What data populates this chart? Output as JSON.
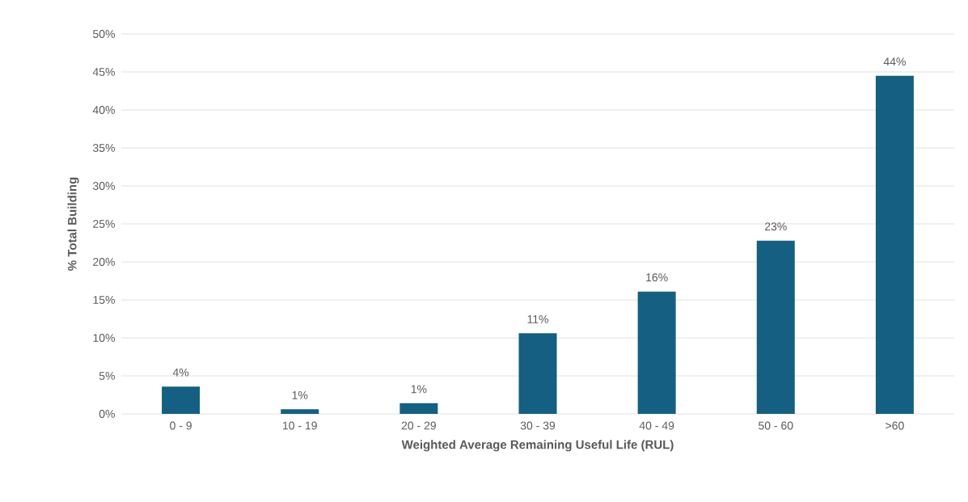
{
  "chart_data": {
    "type": "bar",
    "xlabel": "Weighted Average Remaining Useful Life (RUL)",
    "ylabel": "% Total Building",
    "categories": [
      "0 - 9",
      "10 - 19",
      "20 - 29",
      "30 - 39",
      "40 - 49",
      "50 - 60",
      ">60"
    ],
    "values": [
      3.6,
      0.6,
      1.4,
      10.6,
      16.1,
      22.8,
      44.5
    ],
    "value_labels": [
      "4%",
      "1%",
      "1%",
      "11%",
      "16%",
      "23%",
      "44%"
    ],
    "color": "#155f82",
    "ylim": [
      0,
      50
    ],
    "yticks": [
      {
        "value": 0,
        "label": "0%"
      },
      {
        "value": 5,
        "label": "5%"
      },
      {
        "value": 10,
        "label": "10%"
      },
      {
        "value": 15,
        "label": "15%"
      },
      {
        "value": 20,
        "label": "20%"
      },
      {
        "value": 25,
        "label": "25%"
      },
      {
        "value": 30,
        "label": "30%"
      },
      {
        "value": 35,
        "label": "35%"
      },
      {
        "value": 40,
        "label": "40%"
      },
      {
        "value": 45,
        "label": "45%"
      },
      {
        "value": 50,
        "label": "50%"
      }
    ],
    "grid": "y"
  }
}
